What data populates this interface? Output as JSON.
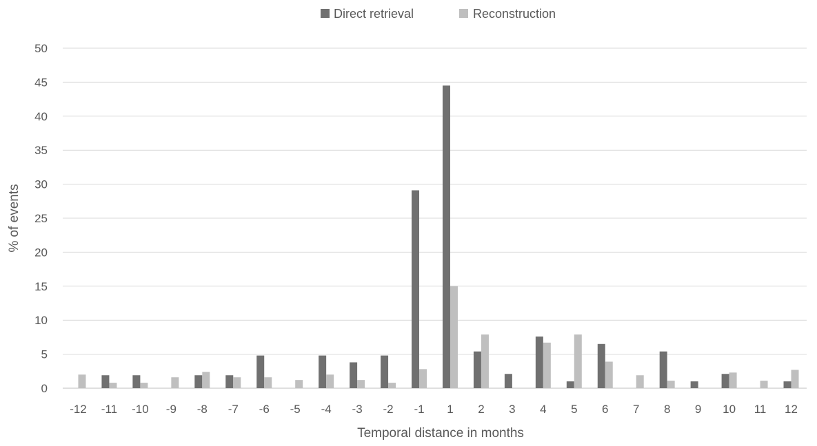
{
  "chart_data": {
    "type": "bar",
    "xlabel": "Temporal distance in months",
    "ylabel": "% of events",
    "ylim": [
      0,
      50
    ],
    "yticks": [
      "0",
      "5",
      "10",
      "15",
      "20",
      "25",
      "30",
      "35",
      "40",
      "45",
      "50"
    ],
    "grid": true,
    "legend_position": "top",
    "categories": [
      "-12",
      "-11",
      "-10",
      "-9",
      "-8",
      "-7",
      "-6",
      "-5",
      "-4",
      "-3",
      "-2",
      "-1",
      "1",
      "2",
      "3",
      "4",
      "5",
      "6",
      "7",
      "8",
      "9",
      "10",
      "11",
      "12"
    ],
    "series": [
      {
        "name": "Direct retrieval",
        "color": "#707070",
        "values": [
          0,
          1.9,
          1.9,
          0,
          1.9,
          1.9,
          4.8,
          0,
          4.8,
          3.8,
          4.8,
          29.1,
          44.5,
          5.4,
          2.1,
          7.6,
          1.0,
          6.5,
          0,
          5.4,
          1.0,
          2.1,
          0,
          1.0
        ]
      },
      {
        "name": "Reconstruction",
        "color": "#bfbfbf",
        "values": [
          2.0,
          0.8,
          0.8,
          1.6,
          2.4,
          1.6,
          1.6,
          1.2,
          2.0,
          1.2,
          0.8,
          2.8,
          15.0,
          7.9,
          0,
          6.7,
          7.9,
          3.9,
          1.9,
          1.1,
          0,
          2.3,
          1.1,
          2.7
        ]
      }
    ]
  }
}
